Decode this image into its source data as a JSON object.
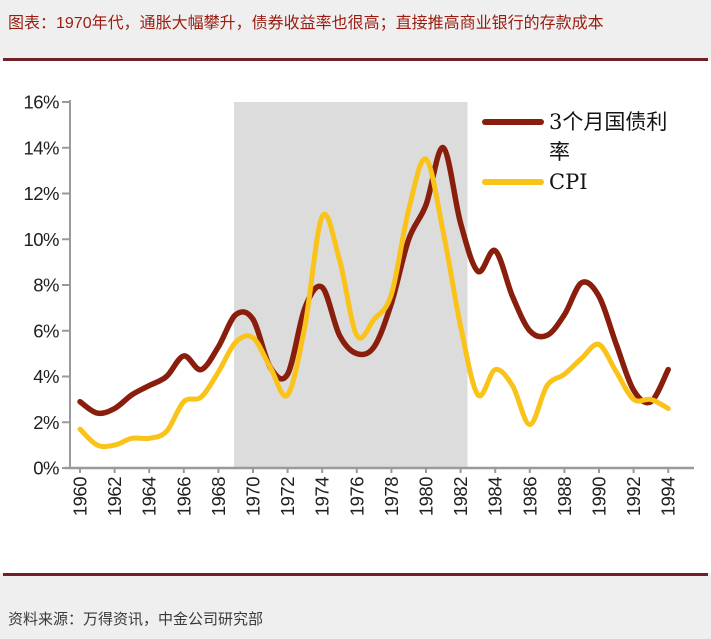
{
  "page": {
    "title": "图表：1970年代，通胀大幅攀升，债券收益率也很高；直接推高商业银行的存款成本",
    "source": "资料来源：万得资讯，中金公司研究部"
  },
  "colors": {
    "rule": "#731f26",
    "title_text": "#9a1c10",
    "treasury_line": "#8a1e0c",
    "cpi_line": "#fac319",
    "shaded_band": "#dcdcdc",
    "axis_line": "#9a9a9a",
    "tick_label": "#1f1f1f",
    "plot_background": "#ffffff",
    "page_background": "#f0efef"
  },
  "legend": {
    "items": [
      {
        "id": "treasury",
        "label": "3个月国债利率",
        "color": "#8a1e0c"
      },
      {
        "id": "cpi",
        "label": "CPI",
        "color": "#fac319"
      }
    ],
    "position": "top-right"
  },
  "chart_data": {
    "type": "line",
    "x": [
      1960,
      1961,
      1962,
      1963,
      1964,
      1965,
      1966,
      1967,
      1968,
      1969,
      1970,
      1971,
      1972,
      1973,
      1974,
      1975,
      1976,
      1977,
      1978,
      1979,
      1980,
      1981,
      1982,
      1983,
      1984,
      1985,
      1986,
      1987,
      1988,
      1989,
      1990,
      1991,
      1992,
      1993,
      1994
    ],
    "series": [
      {
        "name": "3个月国债利率",
        "color": "#8a1e0c",
        "values": [
          2.9,
          2.4,
          2.6,
          3.2,
          3.6,
          4.0,
          4.9,
          4.3,
          5.3,
          6.7,
          6.5,
          4.4,
          4.1,
          7.0,
          7.9,
          5.8,
          5.0,
          5.3,
          7.2,
          10.0,
          11.5,
          14.0,
          10.7,
          8.6,
          9.5,
          7.5,
          6.0,
          5.8,
          6.7,
          8.1,
          7.5,
          5.4,
          3.4,
          2.9,
          4.3
        ]
      },
      {
        "name": "CPI",
        "color": "#fac319",
        "values": [
          1.7,
          1.0,
          1.0,
          1.3,
          1.3,
          1.6,
          2.9,
          3.1,
          4.2,
          5.5,
          5.7,
          4.4,
          3.2,
          6.2,
          11.0,
          9.1,
          5.8,
          6.5,
          7.6,
          11.3,
          13.5,
          10.3,
          6.2,
          3.2,
          4.3,
          3.6,
          1.9,
          3.6,
          4.1,
          4.8,
          5.4,
          4.2,
          3.0,
          3.0,
          2.6
        ]
      }
    ],
    "ylim": [
      0,
      16
    ],
    "y_tick_labels": [
      "0%",
      "2%",
      "4%",
      "6%",
      "8%",
      "10%",
      "12%",
      "14%",
      "16%"
    ],
    "y_tick_values": [
      0,
      2,
      4,
      6,
      8,
      10,
      12,
      14,
      16
    ],
    "x_tick_labels": [
      "1960",
      "1962",
      "1964",
      "1966",
      "1968",
      "1970",
      "1972",
      "1974",
      "1976",
      "1978",
      "1980",
      "1982",
      "1984",
      "1986",
      "1988",
      "1990",
      "1992",
      "1994"
    ],
    "x_tick_values": [
      1960,
      1962,
      1964,
      1966,
      1968,
      1970,
      1972,
      1974,
      1976,
      1978,
      1980,
      1982,
      1984,
      1986,
      1988,
      1990,
      1992,
      1994
    ],
    "shaded_region": {
      "from": 1968.9,
      "to": 1982.4,
      "color": "#dcdcdc"
    },
    "grid": false,
    "legend_position": "top-right",
    "title": "",
    "xlabel": "",
    "ylabel": ""
  }
}
